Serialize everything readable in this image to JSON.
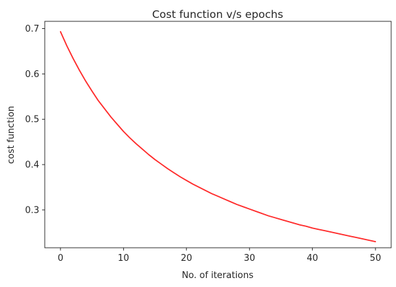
{
  "chart_data": {
    "type": "line",
    "title": "Cost function v/s epochs",
    "xlabel": "No. of iterations",
    "ylabel": "cost function",
    "xlim": [
      -2.5,
      52.5
    ],
    "ylim": [
      0.2165,
      0.7159
    ],
    "xticks": [
      0,
      10,
      20,
      30,
      40,
      50
    ],
    "yticks": [
      0.3,
      0.4,
      0.5,
      0.6,
      0.7
    ],
    "ytick_labels": [
      "0.3",
      "0.4",
      "0.5",
      "0.6",
      "0.7"
    ],
    "grid": false,
    "legend": "none",
    "series": [
      {
        "color": "#ff2a2a",
        "x": [
          0,
          1,
          2,
          3,
          4,
          5,
          6,
          7,
          8,
          9,
          10,
          11,
          12,
          13,
          14,
          15,
          16,
          17,
          18,
          19,
          20,
          21,
          22,
          23,
          24,
          25,
          26,
          27,
          28,
          29,
          30,
          31,
          32,
          33,
          34,
          35,
          36,
          37,
          38,
          39,
          40,
          41,
          42,
          43,
          44,
          45,
          46,
          47,
          48,
          49,
          50
        ],
        "y": [
          0.693,
          0.662,
          0.634,
          0.608,
          0.584,
          0.562,
          0.541,
          0.523,
          0.505,
          0.489,
          0.473,
          0.459,
          0.446,
          0.434,
          0.422,
          0.411,
          0.401,
          0.391,
          0.382,
          0.373,
          0.365,
          0.357,
          0.35,
          0.343,
          0.336,
          0.33,
          0.324,
          0.318,
          0.312,
          0.307,
          0.302,
          0.297,
          0.292,
          0.287,
          0.283,
          0.279,
          0.275,
          0.271,
          0.267,
          0.264,
          0.26,
          0.257,
          0.254,
          0.251,
          0.248,
          0.245,
          0.242,
          0.239,
          0.236,
          0.233,
          0.23
        ]
      }
    ]
  }
}
